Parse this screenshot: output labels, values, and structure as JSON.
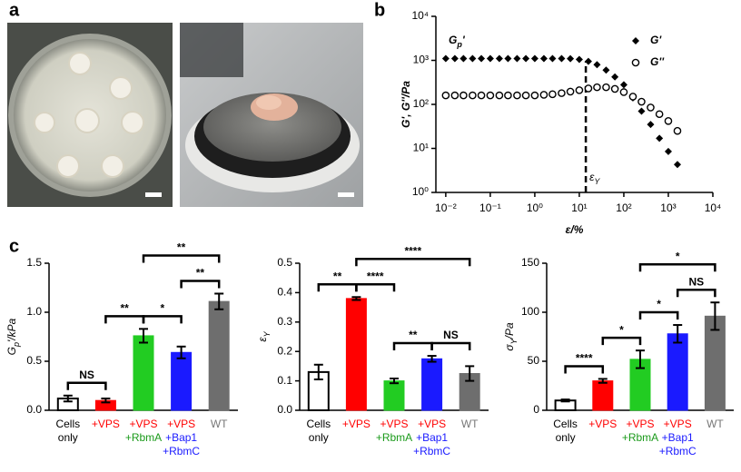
{
  "panel_labels": [
    "a",
    "b",
    "c"
  ],
  "chart_data": [
    {
      "type": "scatter",
      "xscale": "log",
      "yscale": "log",
      "label_parts": [
        {
          "text": "G"
        },
        {
          "text": "p",
          "sub": true
        },
        {
          "text": "'"
        }
      ],
      "ylabel": "G', G''/Pa",
      "xlabel": "ε/%",
      "annotation_parts": [
        {
          "text": "ε"
        },
        {
          "text": "Y",
          "sub": true
        }
      ],
      "yield_x": 14,
      "xlim": [
        0.006,
        10000
      ],
      "ylim": [
        1,
        10000
      ],
      "xticks": [
        {
          "value": 0.01,
          "label": "10⁻²"
        },
        {
          "value": 0.1,
          "label": "10⁻¹"
        },
        {
          "value": 1,
          "label": "10⁰"
        },
        {
          "value": 10,
          "label": "10¹"
        },
        {
          "value": 100,
          "label": "10²"
        },
        {
          "value": 1000,
          "label": "10³"
        },
        {
          "value": 10000,
          "label": "10⁴"
        }
      ],
      "yticks": [
        {
          "value": 1,
          "label": "10⁰"
        },
        {
          "value": 10,
          "label": "10¹"
        },
        {
          "value": 100,
          "label": "10²"
        },
        {
          "value": 1000,
          "label": "10³"
        },
        {
          "value": 10000,
          "label": "10⁴"
        }
      ],
      "x": [
        0.01,
        0.016,
        0.025,
        0.04,
        0.063,
        0.1,
        0.16,
        0.25,
        0.4,
        0.63,
        1,
        1.6,
        2.5,
        4,
        6.3,
        10,
        16,
        25,
        40,
        63,
        100,
        160,
        250,
        400,
        630,
        1000,
        1600
      ],
      "series": [
        {
          "name": "G'",
          "marker": "diamond",
          "color": "#000000",
          "values": [
            1100,
            1100,
            1100,
            1100,
            1100,
            1100,
            1100,
            1100,
            1100,
            1100,
            1100,
            1100,
            1100,
            1100,
            1090,
            1050,
            950,
            800,
            600,
            420,
            280,
            140,
            70,
            35,
            17,
            8.5,
            4.3
          ]
        },
        {
          "name": "G''",
          "marker": "circle",
          "color": "#000000",
          "values": [
            160,
            160,
            160,
            160,
            160,
            160,
            160,
            160,
            160,
            160,
            160,
            165,
            170,
            180,
            195,
            210,
            230,
            245,
            245,
            225,
            190,
            150,
            115,
            85,
            60,
            42,
            25
          ]
        }
      ]
    },
    {
      "type": "bar",
      "ylabel_parts": [
        {
          "text": "G"
        },
        {
          "text": "p",
          "sub": true
        },
        {
          "text": "'/kPa"
        }
      ],
      "categories": [
        [
          "Cells",
          "only"
        ],
        [
          "+VPS"
        ],
        [
          "+VPS",
          "+RbmA"
        ],
        [
          "+VPS",
          "+Bap1",
          "+RbmC"
        ],
        [
          "WT"
        ]
      ],
      "category_label_colors": [
        [
          "#000000",
          "#000000"
        ],
        [
          "#ff0000"
        ],
        [
          "#ff0000",
          "#1a9a1a"
        ],
        [
          "#ff0000",
          "#1a1aff",
          "#1a1aff"
        ],
        [
          "#777777"
        ]
      ],
      "colors": [
        "#ffffff",
        "#ff0000",
        "#22cc22",
        "#1a1aff",
        "#6e6e6e"
      ],
      "values": [
        0.12,
        0.1,
        0.76,
        0.59,
        1.11
      ],
      "errors": [
        0.03,
        0.02,
        0.07,
        0.06,
        0.08
      ],
      "ylim": [
        0,
        1.5
      ],
      "yticks": [
        {
          "value": 0,
          "label": "0.0"
        },
        0.5,
        {
          "value": 1,
          "label": "1.0"
        },
        1.5
      ],
      "brackets": [
        {
          "from": 0,
          "to": 1,
          "label": "NS"
        },
        {
          "from": 1,
          "to": 2,
          "label": "**"
        },
        {
          "from": 2,
          "to": 3,
          "label": "*"
        },
        {
          "from": 3,
          "to": 4,
          "label": "**"
        },
        {
          "from": 2,
          "to": 4,
          "label": "**"
        }
      ]
    },
    {
      "type": "bar",
      "ylabel_parts": [
        {
          "text": "ε"
        },
        {
          "text": "Y",
          "sub": true
        }
      ],
      "categories": [
        [
          "Cells",
          "only"
        ],
        [
          "+VPS"
        ],
        [
          "+VPS",
          "+RbmA"
        ],
        [
          "+VPS",
          "+Bap1",
          "+RbmC"
        ],
        [
          "WT"
        ]
      ],
      "category_label_colors": [
        [
          "#000000",
          "#000000"
        ],
        [
          "#ff0000"
        ],
        [
          "#ff0000",
          "#1a9a1a"
        ],
        [
          "#ff0000",
          "#1a1aff",
          "#1a1aff"
        ],
        [
          "#777777"
        ]
      ],
      "colors": [
        "#ffffff",
        "#ff0000",
        "#22cc22",
        "#1a1aff",
        "#6e6e6e"
      ],
      "values": [
        0.13,
        0.38,
        0.1,
        0.175,
        0.125
      ],
      "errors": [
        0.025,
        0.005,
        0.008,
        0.01,
        0.025
      ],
      "ylim": [
        0,
        0.5
      ],
      "yticks": [
        {
          "value": 0,
          "label": "0.0"
        },
        0.1,
        0.2,
        0.3,
        0.4,
        0.5
      ],
      "brackets": [
        {
          "from": 0,
          "to": 1,
          "label": "**"
        },
        {
          "from": 1,
          "to": 2,
          "label": "****"
        },
        {
          "from": 2,
          "to": 3,
          "label": "**"
        },
        {
          "from": 3,
          "to": 4,
          "label": "NS"
        },
        {
          "from": 1,
          "to": 4,
          "label": "****"
        }
      ]
    },
    {
      "type": "bar",
      "ylabel_parts": [
        {
          "text": "σ"
        },
        {
          "text": "Y",
          "sub": true
        },
        {
          "text": "/Pa"
        }
      ],
      "categories": [
        [
          "Cells",
          "only"
        ],
        [
          "+VPS"
        ],
        [
          "+VPS",
          "+RbmA"
        ],
        [
          "+VPS",
          "+Bap1",
          "+RbmC"
        ],
        [
          "WT"
        ]
      ],
      "category_label_colors": [
        [
          "#000000",
          "#000000"
        ],
        [
          "#ff0000"
        ],
        [
          "#ff0000",
          "#1a9a1a"
        ],
        [
          "#ff0000",
          "#1a1aff",
          "#1a1aff"
        ],
        [
          "#777777"
        ]
      ],
      "colors": [
        "#ffffff",
        "#ff0000",
        "#22cc22",
        "#1a1aff",
        "#6e6e6e"
      ],
      "values": [
        10,
        30,
        52,
        78,
        96
      ],
      "errors": [
        1,
        2,
        9,
        9,
        14
      ],
      "ylim": [
        0,
        150
      ],
      "yticks": [
        0,
        50,
        100,
        150
      ],
      "brackets": [
        {
          "from": 0,
          "to": 1,
          "label": "****"
        },
        {
          "from": 1,
          "to": 2,
          "label": "*"
        },
        {
          "from": 2,
          "to": 3,
          "label": "*"
        },
        {
          "from": 3,
          "to": 4,
          "label": "NS"
        },
        {
          "from": 2,
          "to": 4,
          "label": "*"
        }
      ]
    }
  ]
}
